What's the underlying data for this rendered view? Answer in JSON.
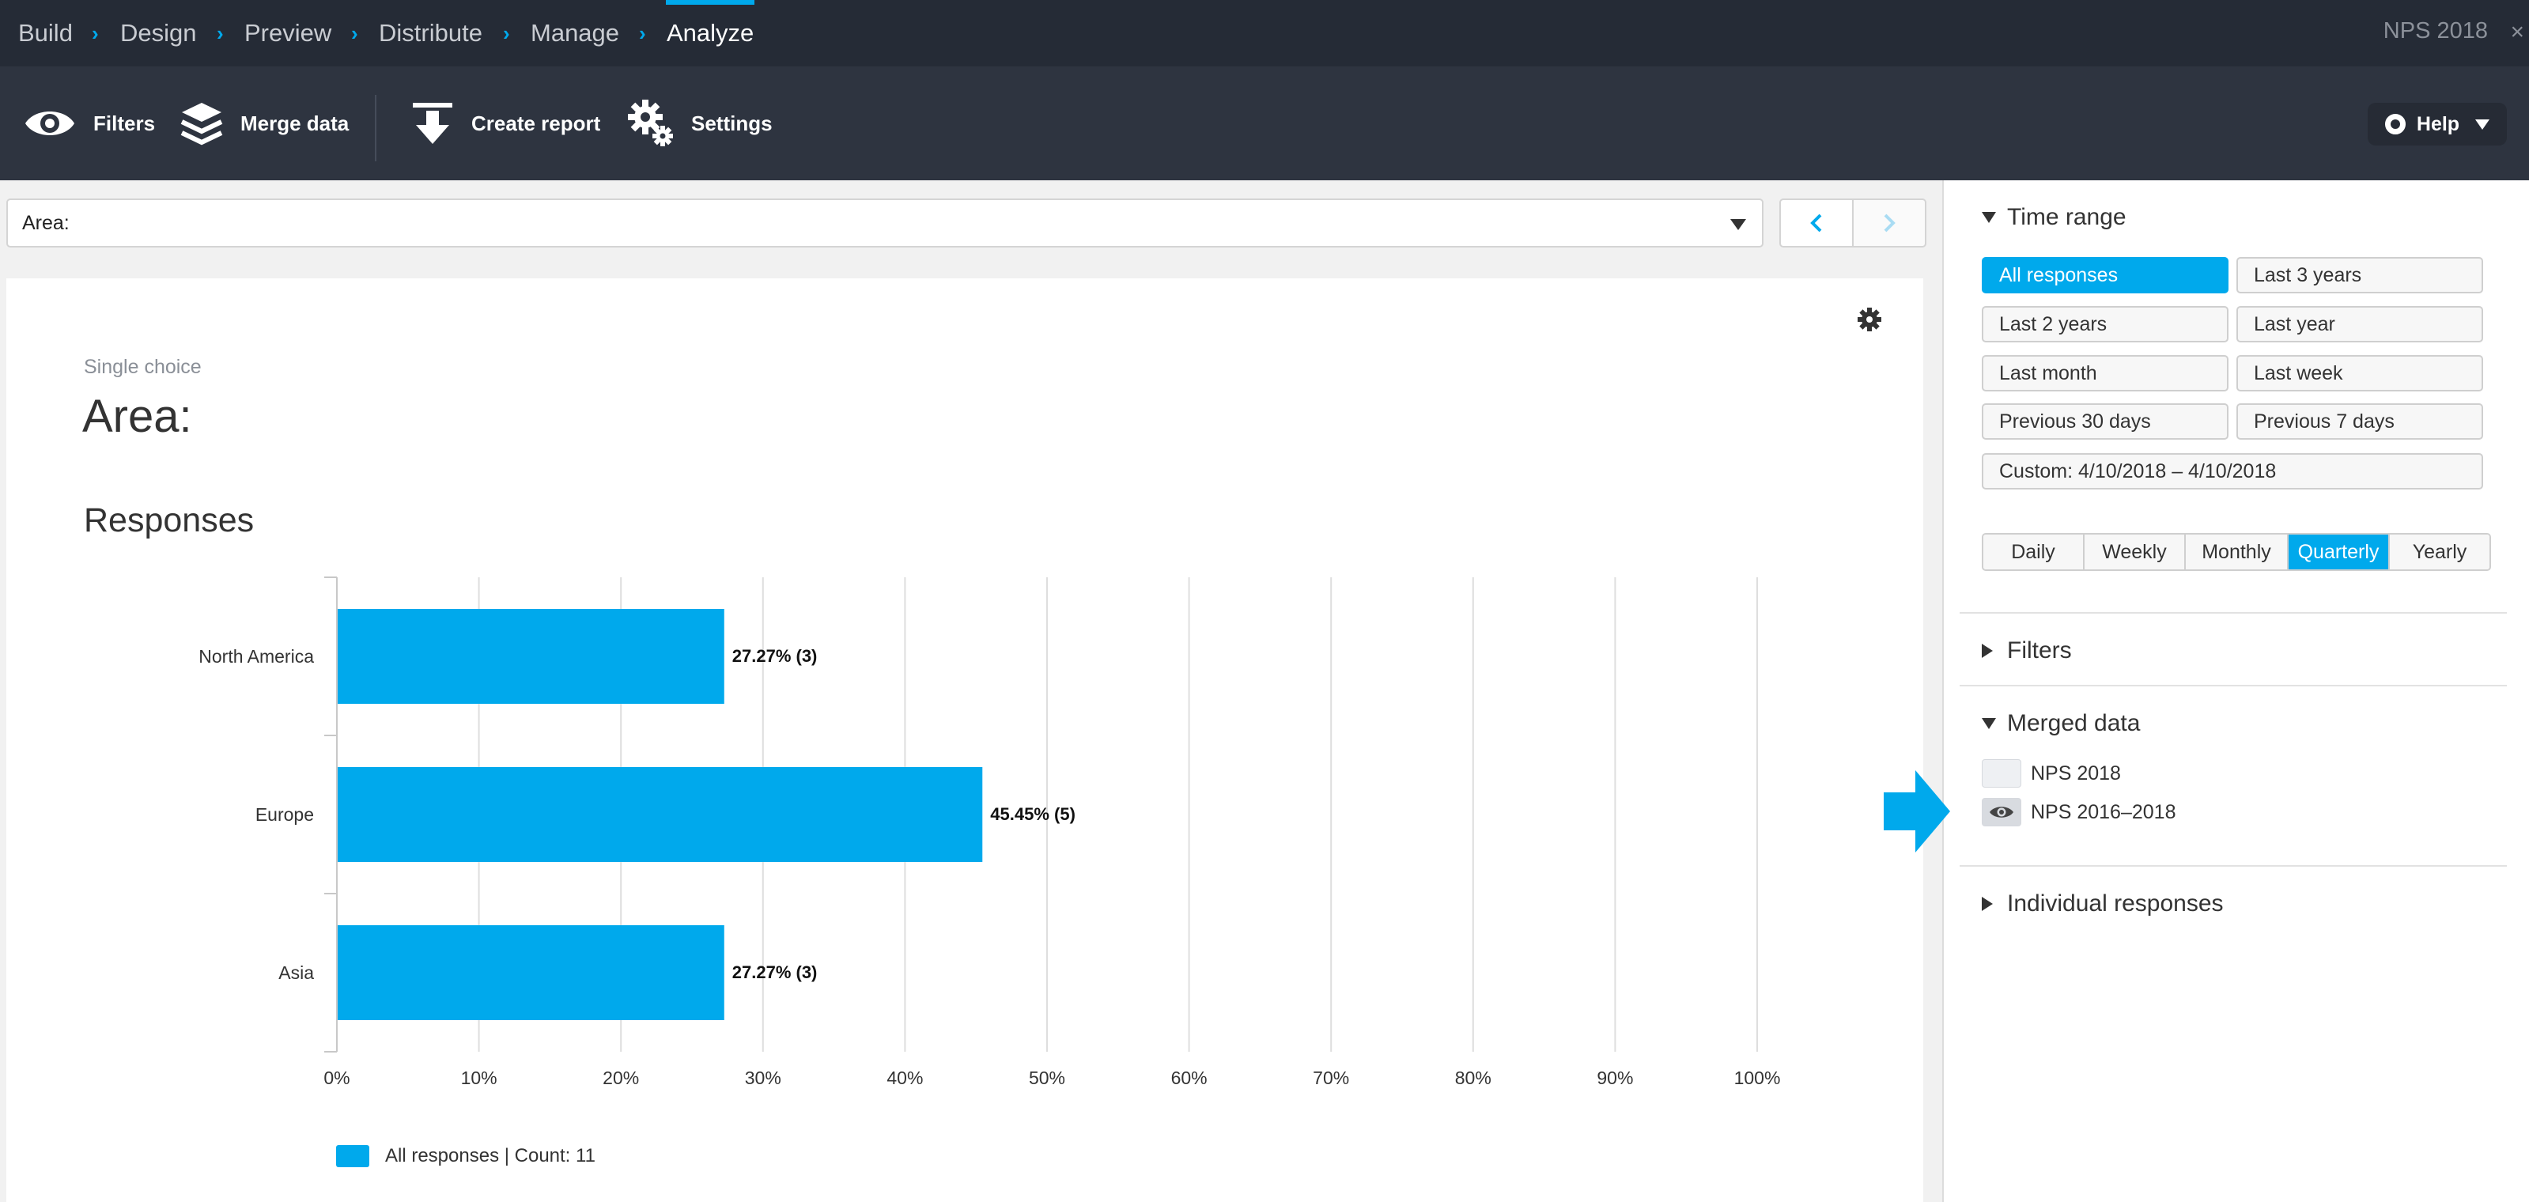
{
  "nav": {
    "crumbs": [
      "Build",
      "Design",
      "Preview",
      "Distribute",
      "Manage",
      "Analyze"
    ],
    "active": "Analyze",
    "survey_title": "NPS 2018",
    "close_glyph": "×"
  },
  "toolbar": {
    "filters": "Filters",
    "merge_data": "Merge data",
    "create_report": "Create report",
    "settings": "Settings",
    "help": "Help"
  },
  "question_select": {
    "value": "Area:"
  },
  "card": {
    "question_type": "Single choice",
    "question_title": "Area:",
    "section_title": "Responses"
  },
  "chart_data": {
    "type": "bar",
    "orientation": "horizontal",
    "categories": [
      "North America",
      "Europe",
      "Asia"
    ],
    "values": [
      27.27,
      45.45,
      27.27
    ],
    "counts": [
      3,
      5,
      3
    ],
    "data_labels": [
      "27.27% (3)",
      "45.45% (5)",
      "27.27% (3)"
    ],
    "xlim": [
      0,
      100
    ],
    "xticks": [
      "0%",
      "10%",
      "20%",
      "30%",
      "40%",
      "50%",
      "60%",
      "70%",
      "80%",
      "90%",
      "100%"
    ],
    "grid": true,
    "series": [
      {
        "name": "All responses | Count: 11",
        "color": "#00a9ec"
      }
    ],
    "legend": "bottom-left"
  },
  "right_panel": {
    "time_range": {
      "title": "Time range",
      "options": [
        "All responses",
        "Last 3 years",
        "Last 2 years",
        "Last year",
        "Last month",
        "Last week",
        "Previous 30 days",
        "Previous 7 days"
      ],
      "selected": "All responses",
      "custom": "Custom: 4/10/2018 – 4/10/2018"
    },
    "granularity": {
      "options": [
        "Daily",
        "Weekly",
        "Monthly",
        "Quarterly",
        "Yearly"
      ],
      "selected": "Quarterly"
    },
    "filters_title": "Filters",
    "merged_data": {
      "title": "Merged data",
      "items": [
        {
          "label": "NPS 2018",
          "visible": false
        },
        {
          "label": "NPS 2016–2018",
          "visible": true
        }
      ]
    },
    "individual_responses_title": "Individual responses"
  },
  "colors": {
    "accent": "#00a9ec",
    "nav_bg": "#252b36",
    "toolbar_bg": "#2e3440"
  }
}
